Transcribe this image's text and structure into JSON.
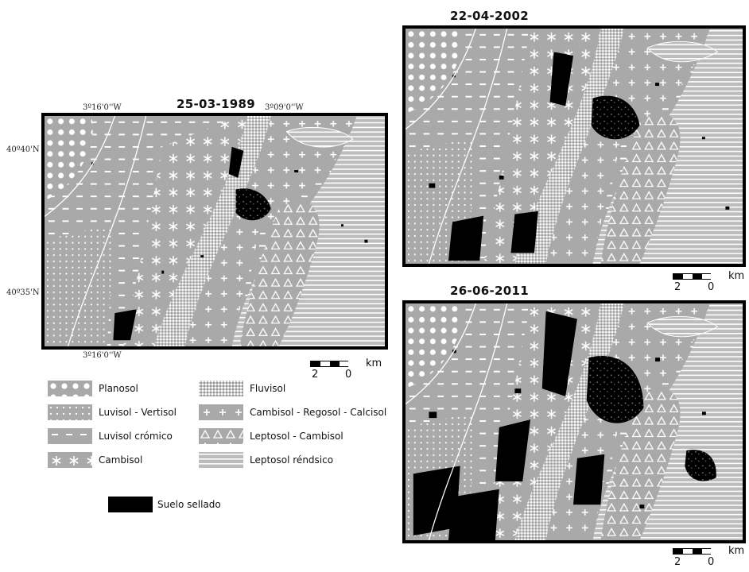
{
  "maps": [
    {
      "id": "map-1989",
      "date": "25-03-1989",
      "coords": {
        "top_left_lon": "3º16'0''W",
        "top_right_lon": "3º09'0''W",
        "bottom_lon": "3º16'0''W",
        "lat_top": "40º40'N",
        "lat_bottom": "40º35'N"
      }
    },
    {
      "id": "map-2002",
      "date": "22-04-2002"
    },
    {
      "id": "map-2011",
      "date": "26-06-2011"
    }
  ],
  "scale": {
    "left_label": "2",
    "right_label": "0",
    "unit": "km"
  },
  "legend": {
    "items": [
      {
        "label": "Planosol",
        "pattern": "dots-large"
      },
      {
        "label": "Fluvisol",
        "pattern": "fine-grid"
      },
      {
        "label": "Luvisol - Vertisol",
        "pattern": "dots-small"
      },
      {
        "label": "Cambisol - Regosol - Calcisol",
        "pattern": "plus"
      },
      {
        "label": "Luvisol crómico",
        "pattern": "dashes"
      },
      {
        "label": "Leptosol - Cambisol",
        "pattern": "triangles"
      },
      {
        "label": "Cambisol",
        "pattern": "stars"
      },
      {
        "label": "Leptosol réndsico",
        "pattern": "lines"
      },
      {
        "label": "Suelo sellado",
        "pattern": "solid-black"
      }
    ]
  },
  "colors": {
    "soil_base": "#a9a9a9",
    "sealed": "#000000",
    "pattern_marks": "#ffffff"
  }
}
